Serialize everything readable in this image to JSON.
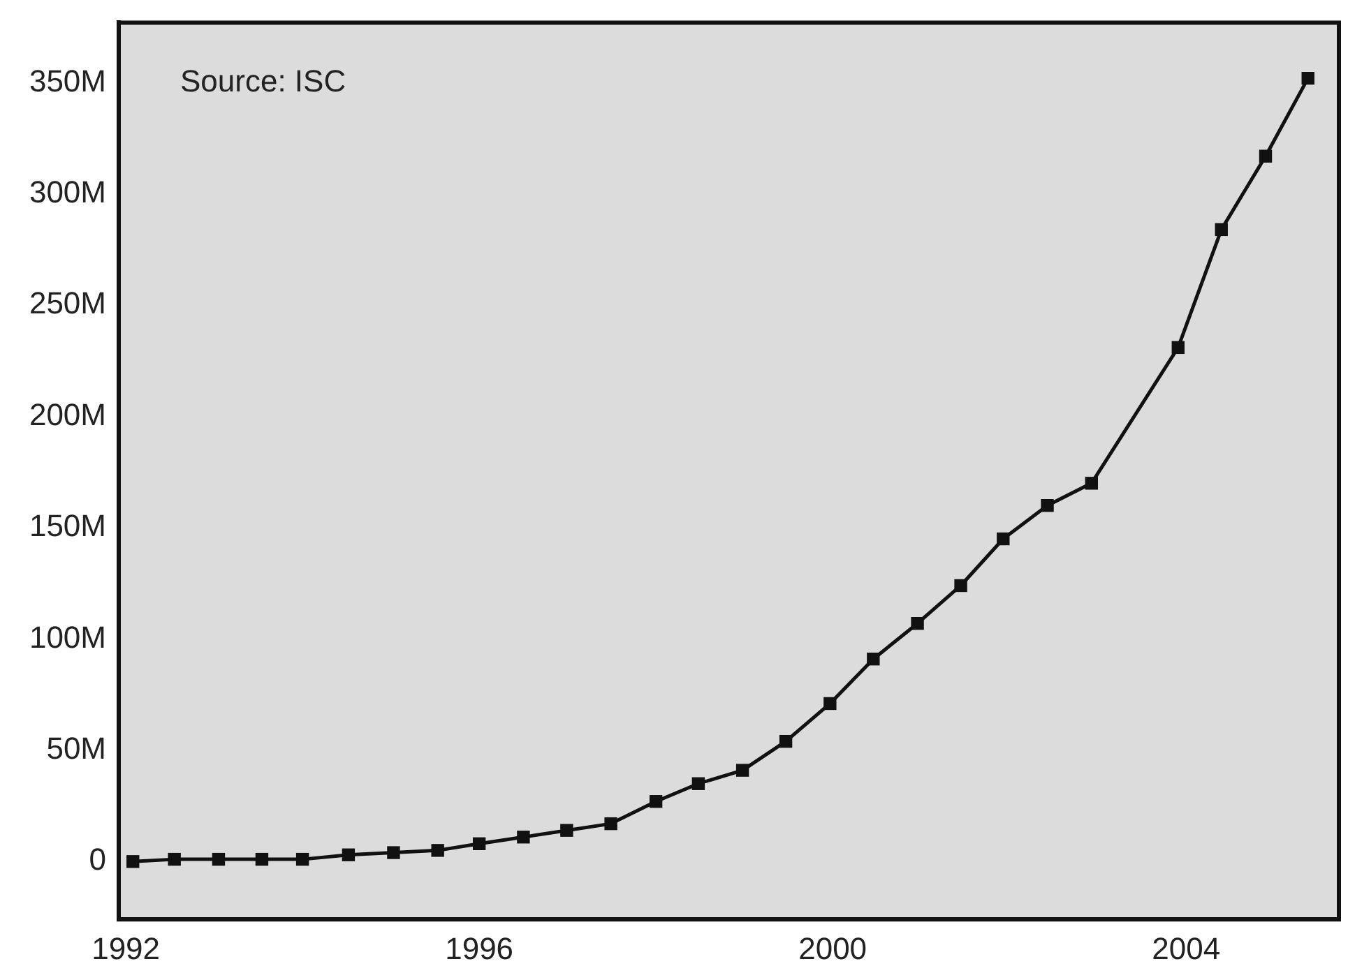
{
  "chart_data": {
    "type": "line",
    "annotations": [
      "Source: ISC"
    ],
    "x": [
      1992.08,
      1992.55,
      1993.05,
      1993.54,
      1994.0,
      1994.52,
      1995.03,
      1995.53,
      1996.0,
      1996.5,
      1996.99,
      1997.49,
      1998.0,
      1998.48,
      1998.98,
      1999.47,
      1999.97,
      2000.46,
      2000.96,
      2001.45,
      2001.93,
      2002.43,
      2002.93,
      2003.91,
      2004.4,
      2004.9,
      2005.38
    ],
    "series": [
      {
        "color": "#111111",
        "values": [
          0,
          1,
          1,
          1,
          1,
          3,
          4,
          5,
          8,
          11,
          14,
          17,
          27,
          35,
          41,
          54,
          71,
          91,
          107,
          124,
          145,
          160,
          170,
          231,
          284,
          317,
          352
        ]
      }
    ],
    "xlim": [
      1991.92,
      2005.73
    ],
    "xticks": [
      1992,
      1996,
      2000,
      2004
    ],
    "ylim": [
      -26,
      377
    ],
    "yticks": [
      0,
      {
        "value": 50,
        "label": "50M"
      },
      {
        "value": 100,
        "label": "100M"
      },
      {
        "value": 150,
        "label": "150M"
      },
      {
        "value": 200,
        "label": "200M"
      },
      {
        "value": 250,
        "label": "250M"
      },
      {
        "value": 300,
        "label": "300M"
      },
      {
        "value": 350,
        "label": "350M"
      }
    ],
    "marker": "square",
    "line_style": "solid",
    "grid": false,
    "legend": false
  }
}
